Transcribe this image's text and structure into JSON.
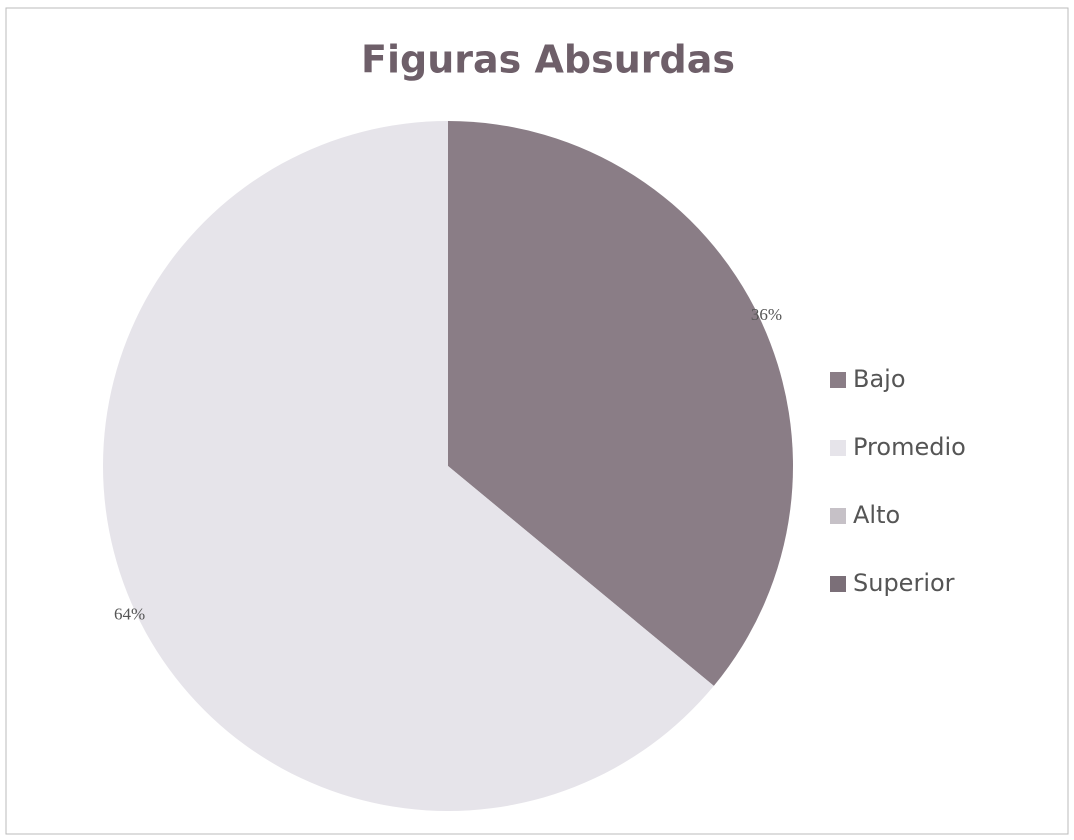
{
  "chart_data": {
    "type": "pie",
    "title": "Figuras Absurdas",
    "categories": [
      "Bajo",
      "Promedio",
      "Alto",
      "Superior"
    ],
    "values": [
      36,
      64,
      0,
      0
    ],
    "value_labels": [
      "36%",
      "64%",
      null,
      null
    ],
    "colors": [
      "#8a7d86",
      "#e6e4ea",
      "#c6c1c7",
      "#7b6f78"
    ],
    "legend": "right"
  }
}
